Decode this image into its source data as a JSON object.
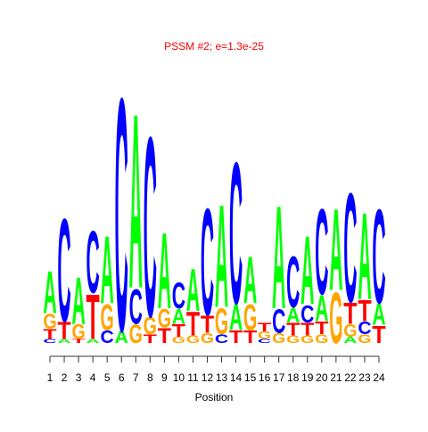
{
  "chart_data": {
    "type": "logo",
    "title": "PSSM #2; e=1.3e-25",
    "title_color": "#ff0000",
    "xlabel": "Position",
    "categories": [
      1,
      2,
      3,
      4,
      5,
      6,
      7,
      8,
      9,
      10,
      11,
      12,
      13,
      14,
      15,
      16,
      17,
      18,
      19,
      20,
      21,
      22,
      23,
      24
    ],
    "colors": {
      "A": "#00ff00",
      "C": "#0000ff",
      "G": "#ffa500",
      "T": "#ff0000"
    },
    "ylim": [
      0,
      2
    ],
    "stacks": [
      [
        {
          "letter": "C",
          "value": 0.03
        },
        {
          "letter": "T",
          "value": 0.08
        },
        {
          "letter": "G",
          "value": 0.12
        },
        {
          "letter": "A",
          "value": 0.34
        }
      ],
      [
        {
          "letter": "A",
          "value": 0.03
        },
        {
          "letter": "T",
          "value": 0.14
        },
        {
          "letter": "C",
          "value": 0.83
        }
      ],
      [
        {
          "letter": "T",
          "value": 0.03
        },
        {
          "letter": "G",
          "value": 0.12
        },
        {
          "letter": "A",
          "value": 0.38
        }
      ],
      [
        {
          "letter": "A",
          "value": 0.03
        },
        {
          "letter": "T",
          "value": 0.36
        },
        {
          "letter": "C",
          "value": 0.5
        }
      ],
      [
        {
          "letter": "C",
          "value": 0.1
        },
        {
          "letter": "G",
          "value": 0.21
        },
        {
          "letter": "A",
          "value": 0.54
        }
      ],
      [
        {
          "letter": "A",
          "value": 0.1
        },
        {
          "letter": "C",
          "value": 1.88
        }
      ],
      [
        {
          "letter": "G",
          "value": 0.15
        },
        {
          "letter": "C",
          "value": 0.28
        },
        {
          "letter": "A",
          "value": 1.41
        }
      ],
      [
        {
          "letter": "T",
          "value": 0.07
        },
        {
          "letter": "G",
          "value": 0.14
        },
        {
          "letter": "C",
          "value": 1.45
        }
      ],
      [
        {
          "letter": "T",
          "value": 0.12
        },
        {
          "letter": "G",
          "value": 0.15
        },
        {
          "letter": "A",
          "value": 0.61
        }
      ],
      [
        {
          "letter": "G",
          "value": 0.05
        },
        {
          "letter": "T",
          "value": 0.1
        },
        {
          "letter": "A",
          "value": 0.12
        },
        {
          "letter": "C",
          "value": 0.21
        }
      ],
      [
        {
          "letter": "G",
          "value": 0.06
        },
        {
          "letter": "T",
          "value": 0.19
        },
        {
          "letter": "A",
          "value": 0.34
        }
      ],
      [
        {
          "letter": "G",
          "value": 0.08
        },
        {
          "letter": "T",
          "value": 0.14
        },
        {
          "letter": "C",
          "value": 0.86
        }
      ],
      [
        {
          "letter": "C",
          "value": 0.07
        },
        {
          "letter": "G",
          "value": 0.21
        },
        {
          "letter": "A",
          "value": 0.83
        }
      ],
      [
        {
          "letter": "T",
          "value": 0.1
        },
        {
          "letter": "A",
          "value": 0.21
        },
        {
          "letter": "C",
          "value": 1.14
        }
      ],
      [
        {
          "letter": "T",
          "value": 0.1
        },
        {
          "letter": "G",
          "value": 0.21
        },
        {
          "letter": "A",
          "value": 0.38
        }
      ],
      [
        {
          "letter": "C",
          "value": 0.03
        },
        {
          "letter": "G",
          "value": 0.06
        },
        {
          "letter": "T",
          "value": 0.07
        }
      ],
      [
        {
          "letter": "G",
          "value": 0.08
        },
        {
          "letter": "C",
          "value": 0.19
        },
        {
          "letter": "A",
          "value": 0.83
        }
      ],
      [
        {
          "letter": "G",
          "value": 0.06
        },
        {
          "letter": "T",
          "value": 0.1
        },
        {
          "letter": "A",
          "value": 0.12
        },
        {
          "letter": "C",
          "value": 0.41
        }
      ],
      [
        {
          "letter": "G",
          "value": 0.06
        },
        {
          "letter": "T",
          "value": 0.1
        },
        {
          "letter": "C",
          "value": 0.14
        },
        {
          "letter": "A",
          "value": 0.55
        }
      ],
      [
        {
          "letter": "G",
          "value": 0.07
        },
        {
          "letter": "T",
          "value": 0.1
        },
        {
          "letter": "A",
          "value": 0.21
        },
        {
          "letter": "C",
          "value": 0.69
        }
      ],
      [
        {
          "letter": "G",
          "value": 0.41
        },
        {
          "letter": "A",
          "value": 0.66
        }
      ],
      [
        {
          "letter": "A",
          "value": 0.05
        },
        {
          "letter": "G",
          "value": 0.1
        },
        {
          "letter": "T",
          "value": 0.17
        },
        {
          "letter": "C",
          "value": 0.88
        }
      ],
      [
        {
          "letter": "G",
          "value": 0.07
        },
        {
          "letter": "C",
          "value": 0.1
        },
        {
          "letter": "T",
          "value": 0.17
        },
        {
          "letter": "A",
          "value": 0.7
        }
      ],
      [
        {
          "letter": "T",
          "value": 0.14
        },
        {
          "letter": "A",
          "value": 0.17
        },
        {
          "letter": "C",
          "value": 0.76
        }
      ]
    ]
  }
}
